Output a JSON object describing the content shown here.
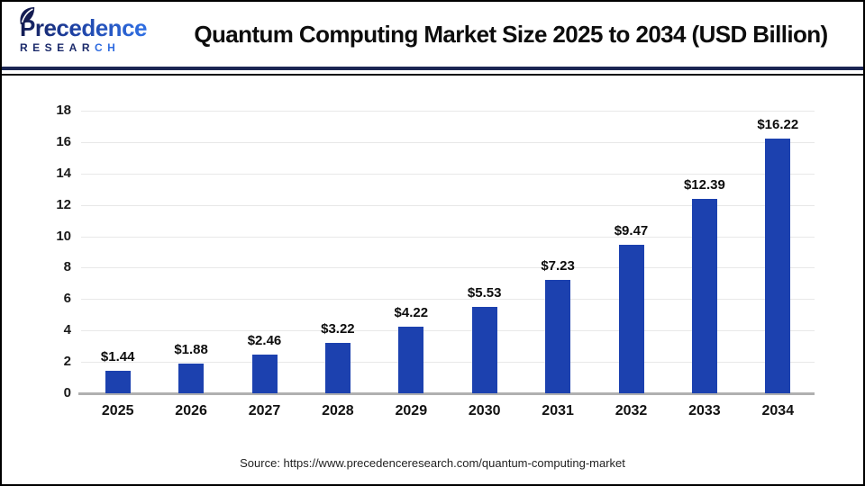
{
  "logo": {
    "name": "Precedence",
    "subtitle_main": "RESEAR",
    "subtitle_accent": "CH"
  },
  "header": {
    "title": "Quantum Computing Market Size 2025 to 2034 (USD Billion)"
  },
  "source": {
    "text": "Source: https://www.precedenceresearch.com/quantum-computing-market"
  },
  "colors": {
    "bar": "#1c41af",
    "header_rule": "#1b2653",
    "logo_navy": "#1b2a6b",
    "logo_blue": "#2e6be0",
    "gridline": "#e8e8e8",
    "baseline": "#b0b0b0"
  },
  "chart_data": {
    "type": "bar",
    "title": "Quantum Computing Market Size 2025 to 2034 (USD Billion)",
    "unit": "USD Billion",
    "categories": [
      "2025",
      "2026",
      "2027",
      "2028",
      "2029",
      "2030",
      "2031",
      "2032",
      "2033",
      "2034"
    ],
    "values": [
      1.44,
      1.88,
      2.46,
      3.22,
      4.22,
      5.53,
      7.23,
      9.47,
      12.39,
      16.22
    ],
    "value_labels": [
      "$1.44",
      "$1.88",
      "$2.46",
      "$3.22",
      "$4.22",
      "$5.53",
      "$7.23",
      "$9.47",
      "$12.39",
      "$16.22"
    ],
    "yticks": [
      0,
      2,
      4,
      6,
      8,
      10,
      12,
      14,
      16,
      18
    ],
    "ylim": [
      0,
      18
    ],
    "xlabel": "",
    "ylabel": "",
    "grid": true,
    "legend": false
  }
}
